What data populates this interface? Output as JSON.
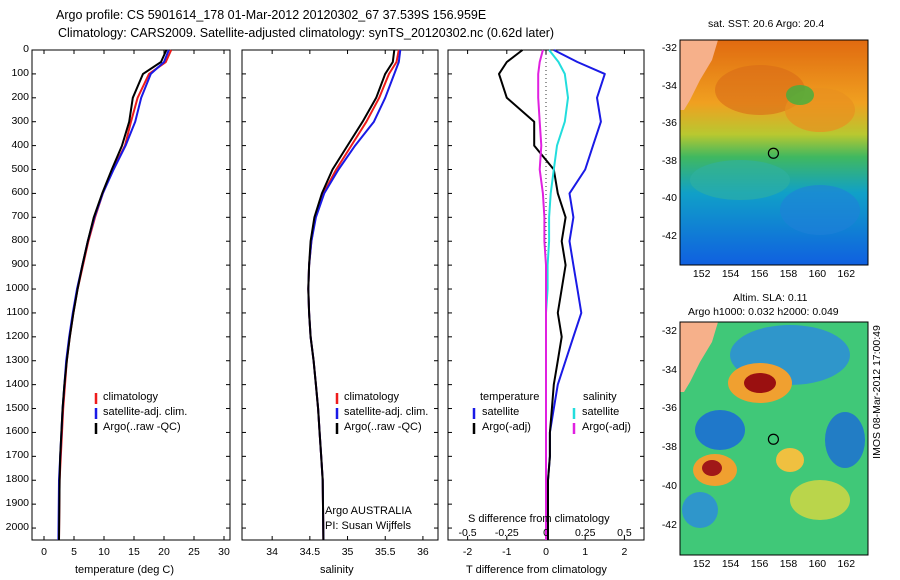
{
  "header": {
    "line1": "Argo profile: CS 5901614_178 01-Mar-2012 20120302_67 37.539S 156.959E",
    "line2": "Climatology: CARS2009. Satellite-adjusted climatology: synTS_20120302.nc (0.62d later)"
  },
  "panels": {
    "temperature": {
      "xlabel": "temperature (deg C)"
    },
    "salinity": {
      "xlabel": "salinity",
      "credit1": "Argo AUSTRALIA",
      "credit2": "PI: Susan Wijffels"
    },
    "difference": {
      "xlabel_bottom": "T difference from climatology",
      "xlabel_top": "S difference from climatology"
    }
  },
  "legend_profiles": {
    "items": [
      "climatology",
      "satellite-adj. clim.",
      "Argo(..raw -QC)"
    ],
    "colors": [
      "#ee1c1c",
      "#1a1ae6",
      "#000000"
    ]
  },
  "legend_difference": {
    "temp_title": "temperature",
    "sal_title": "salinity",
    "temp_items": [
      "satellite",
      "Argo(-adj)"
    ],
    "sal_items": [
      "satellite",
      "Argo(-adj)"
    ],
    "temp_colors": [
      "#1a1ae6",
      "#000000"
    ],
    "sal_colors": [
      "#22dddd",
      "#e020e0"
    ]
  },
  "maps": {
    "sst": {
      "title": "sat. SST: 20.6 Argo: 20.4"
    },
    "sla": {
      "title1": "Altim. SLA: 0.11",
      "title2": "Argo h1000: 0.032 h2000: 0.049"
    },
    "yticks": [
      "-32",
      "-34",
      "-36",
      "-38",
      "-40",
      "-42"
    ],
    "xticks": [
      "152",
      "154",
      "156",
      "158",
      "160",
      "162"
    ],
    "float_marker": {
      "lon": 156.959,
      "lat": -37.539
    }
  },
  "side_text": "IMOS 08-Mar-2012 17:00:49",
  "chart_data": [
    {
      "type": "line",
      "name": "temperature profile",
      "xlabel": "temperature (deg C)",
      "ylabel": "",
      "xlim": [
        -2,
        31
      ],
      "ylim": [
        2050,
        0
      ],
      "xticks": [
        0,
        5,
        10,
        15,
        20,
        25,
        30
      ],
      "yticks": [
        0,
        100,
        200,
        300,
        400,
        500,
        600,
        700,
        800,
        900,
        1000,
        1100,
        1200,
        1300,
        1400,
        1500,
        1600,
        1700,
        1800,
        1900,
        2000
      ],
      "series": [
        {
          "name": "climatology",
          "color": "#ee1c1c",
          "x": [
            21.2,
            20.3,
            17.5,
            15.6,
            14.5,
            13.5,
            11.5,
            9.8,
            8.5,
            7.4,
            6.5,
            5.6,
            4.9,
            4.3,
            3.8,
            3.5,
            3.2,
            3.0,
            2.8,
            2.6,
            2.5
          ],
          "y": [
            0,
            50,
            100,
            200,
            300,
            400,
            500,
            600,
            700,
            800,
            900,
            1000,
            1100,
            1200,
            1300,
            1400,
            1500,
            1600,
            1700,
            1800,
            2050
          ]
        },
        {
          "name": "satellite-adj. clim.",
          "color": "#1a1ae6",
          "x": [
            20.8,
            20.0,
            17.8,
            16.2,
            15.2,
            13.6,
            11.6,
            9.8,
            8.4,
            7.3,
            6.4,
            5.5,
            4.8,
            4.2,
            3.7,
            3.4,
            3.1,
            2.9,
            2.7,
            2.5,
            2.4
          ],
          "y": [
            0,
            50,
            100,
            200,
            300,
            400,
            500,
            600,
            700,
            800,
            900,
            1000,
            1100,
            1200,
            1300,
            1400,
            1500,
            1600,
            1700,
            1800,
            2050
          ]
        },
        {
          "name": "Argo(..raw -QC)",
          "color": "#000000",
          "x": [
            20.4,
            19.5,
            16.5,
            14.8,
            14.2,
            13.0,
            11.3,
            9.7,
            8.3,
            7.3,
            6.4,
            5.6,
            4.9,
            4.3,
            3.8,
            3.4,
            3.1,
            2.9,
            2.7,
            2.6,
            2.5
          ],
          "y": [
            0,
            50,
            100,
            200,
            300,
            400,
            500,
            600,
            700,
            800,
            900,
            1000,
            1100,
            1200,
            1300,
            1400,
            1500,
            1600,
            1700,
            1800,
            2050
          ]
        }
      ]
    },
    {
      "type": "line",
      "name": "salinity profile",
      "xlabel": "salinity",
      "ylabel": "",
      "xlim": [
        33.6,
        36.2
      ],
      "ylim": [
        2050,
        0
      ],
      "xticks": [
        34,
        34.5,
        35,
        35.5,
        36
      ],
      "series": [
        {
          "name": "climatology",
          "color": "#ee1c1c",
          "x": [
            35.68,
            35.65,
            35.55,
            35.42,
            35.25,
            35.05,
            34.85,
            34.68,
            34.57,
            34.52,
            34.49,
            34.48,
            34.49,
            34.51,
            34.55,
            34.58,
            34.61,
            34.63,
            34.65,
            34.67,
            34.68
          ],
          "y": [
            0,
            50,
            100,
            200,
            300,
            400,
            500,
            600,
            700,
            800,
            900,
            1000,
            1100,
            1200,
            1300,
            1400,
            1500,
            1600,
            1700,
            1800,
            2050
          ]
        },
        {
          "name": "satellite-adj. clim.",
          "color": "#1a1ae6",
          "x": [
            35.7,
            35.68,
            35.62,
            35.5,
            35.35,
            35.1,
            34.88,
            34.69,
            34.58,
            34.52,
            34.49,
            34.48,
            34.49,
            34.51,
            34.55,
            34.58,
            34.61,
            34.63,
            34.65,
            34.67,
            34.68
          ],
          "y": [
            0,
            50,
            100,
            200,
            300,
            400,
            500,
            600,
            700,
            800,
            900,
            1000,
            1100,
            1200,
            1300,
            1400,
            1500,
            1600,
            1700,
            1800,
            2050
          ]
        },
        {
          "name": "Argo(..raw -QC)",
          "color": "#000000",
          "x": [
            35.62,
            35.6,
            35.5,
            35.38,
            35.2,
            35.0,
            34.8,
            34.66,
            34.56,
            34.51,
            34.49,
            34.48,
            34.49,
            34.51,
            34.55,
            34.58,
            34.61,
            34.63,
            34.65,
            34.67,
            34.68
          ],
          "y": [
            0,
            50,
            100,
            200,
            300,
            400,
            500,
            600,
            700,
            800,
            900,
            1000,
            1100,
            1200,
            1300,
            1400,
            1500,
            1600,
            1700,
            1800,
            2050
          ]
        }
      ]
    },
    {
      "type": "line",
      "name": "difference from climatology",
      "xlabel": "T difference from climatology",
      "xlabel_top": "S difference from climatology",
      "xlim": [
        -2.5,
        2.5
      ],
      "x2lim": [
        -0.625,
        0.625
      ],
      "ylim": [
        2050,
        0
      ],
      "xticks": [
        -2,
        -1,
        0,
        1,
        2
      ],
      "x2ticks": [
        -0.5,
        -0.25,
        0,
        0.25,
        0.5
      ],
      "series": [
        {
          "name": "temperature satellite",
          "color": "#1a1ae6",
          "axis": "T",
          "x": [
            0.2,
            0.8,
            1.5,
            1.3,
            1.4,
            1.2,
            1.0,
            0.6,
            0.7,
            0.6,
            0.7,
            0.8,
            0.9,
            0.7,
            0.5,
            0.3,
            0.2,
            0.1,
            0.1,
            0.05,
            0.05
          ],
          "y": [
            0,
            50,
            100,
            200,
            300,
            400,
            500,
            600,
            700,
            800,
            900,
            1000,
            1100,
            1200,
            1300,
            1400,
            1500,
            1600,
            1700,
            1800,
            2050
          ]
        },
        {
          "name": "temperature Argo(-adj)",
          "color": "#000000",
          "axis": "T",
          "x": [
            -0.6,
            -1.0,
            -1.2,
            -1.0,
            -0.3,
            -0.3,
            0.2,
            0.3,
            0.5,
            0.4,
            0.5,
            0.4,
            0.3,
            0.4,
            0.3,
            0.2,
            0.15,
            0.1,
            0.1,
            0.05,
            0.05
          ],
          "y": [
            0,
            50,
            100,
            200,
            300,
            400,
            500,
            600,
            700,
            800,
            900,
            1000,
            1100,
            1200,
            1300,
            1400,
            1500,
            1600,
            1700,
            1800,
            2050
          ]
        },
        {
          "name": "salinity satellite",
          "color": "#22dddd",
          "axis": "S",
          "x": [
            0.02,
            0.08,
            0.12,
            0.14,
            0.12,
            0.07,
            0.05,
            0.03,
            0.02,
            0.02,
            0.01,
            0.01,
            0.0,
            0.0,
            0.0,
            0.0,
            0.0,
            0.0,
            0.0,
            0.0,
            0.0
          ],
          "y": [
            0,
            50,
            100,
            200,
            300,
            400,
            500,
            600,
            700,
            800,
            900,
            1000,
            1100,
            1200,
            1300,
            1400,
            1500,
            1600,
            1700,
            1800,
            2050
          ]
        },
        {
          "name": "salinity Argo(-adj)",
          "color": "#e020e0",
          "axis": "S",
          "x": [
            -0.02,
            -0.04,
            -0.05,
            -0.05,
            -0.04,
            -0.03,
            -0.04,
            -0.02,
            -0.01,
            -0.01,
            0.0,
            0.0,
            0.0,
            0.0,
            0.0,
            0.0,
            0.0,
            0.0,
            0.0,
            0.0,
            0.0
          ],
          "y": [
            0,
            50,
            100,
            200,
            300,
            400,
            500,
            600,
            700,
            800,
            900,
            1000,
            1100,
            1200,
            1300,
            1400,
            1500,
            1600,
            1700,
            1800,
            2050
          ]
        }
      ]
    }
  ]
}
